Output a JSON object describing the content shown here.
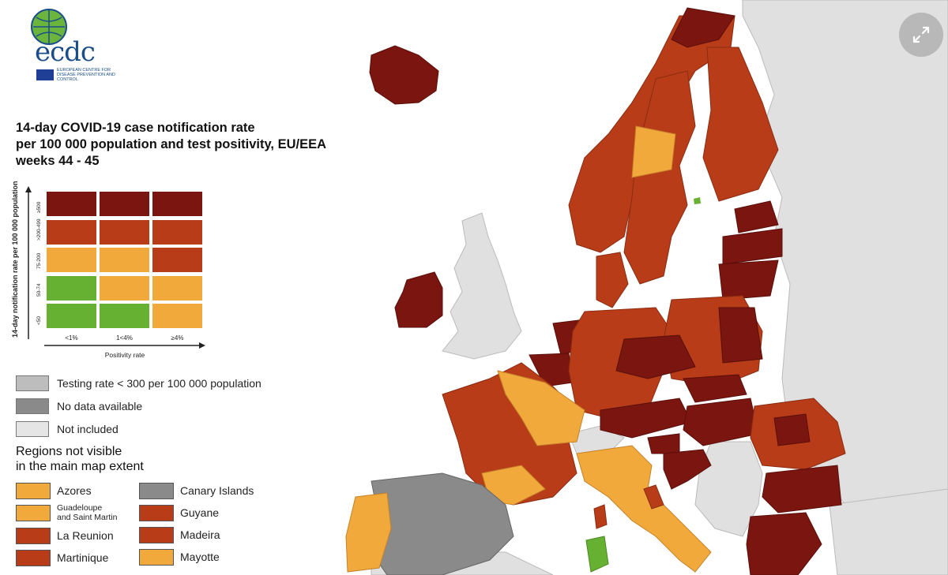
{
  "logo": {
    "name": "ecdc",
    "subtitle": "EUROPEAN CENTRE FOR DISEASE PREVENTION AND CONTROL"
  },
  "title": [
    "14-day COVID-19 case notification rate",
    "per 100 000 population and test positivity, EU/EEA",
    "weeks 44 - 45"
  ],
  "matrix": {
    "y_axis_title": "14-day notification rate per 100 000 population",
    "x_axis_title": "Positivity rate",
    "row_labels": [
      "≥500",
      ">200-499",
      "75-200",
      "50-74",
      "<50"
    ],
    "col_labels": [
      "<1%",
      "1<4%",
      "≥4%"
    ],
    "cells": [
      [
        "#7b1510",
        "#7b1510",
        "#7b1510"
      ],
      [
        "#b83c17",
        "#b83c17",
        "#b83c17"
      ],
      [
        "#f2a93b",
        "#f2a93b",
        "#b83c17"
      ],
      [
        "#66b032",
        "#f2a93b",
        "#f2a93b"
      ],
      [
        "#66b032",
        "#66b032",
        "#f2a93b"
      ]
    ]
  },
  "legend": [
    {
      "label": "Testing rate < 300 per 100 000 population",
      "color": "#bdbdbd"
    },
    {
      "label": "No data available",
      "color": "#8a8a8a"
    },
    {
      "label": "Not included",
      "color": "#e5e5e5"
    }
  ],
  "regions_title": [
    "Regions not visible",
    "in the main map extent"
  ],
  "regions": [
    {
      "label": "Azores",
      "color": "#f2a93b"
    },
    {
      "label": "Guadeloupe and Saint Martin",
      "label_lines": [
        "Guadeloupe",
        "and Saint Martin"
      ],
      "color": "#f2a93b"
    },
    {
      "label": "La Reunion",
      "color": "#b83c17"
    },
    {
      "label": "Martinique",
      "color": "#b83c17"
    },
    {
      "label": "Canary Islands",
      "color": "#8a8a8a"
    },
    {
      "label": "Guyane",
      "color": "#b83c17"
    },
    {
      "label": "Madeira",
      "color": "#b83c17"
    },
    {
      "label": "Mayotte",
      "color": "#f2a93b"
    }
  ],
  "map": {
    "colors": {
      "very_high": "#7b1510",
      "high": "#b83c17",
      "medium": "#f2a93b",
      "low": "#66b032",
      "not_included": "#e0e0e0",
      "no_data": "#8a8a8a",
      "sea": "#ffffff"
    },
    "countries": [
      {
        "name": "Iceland",
        "level": "very_high"
      },
      {
        "name": "Ireland",
        "level": "very_high"
      },
      {
        "name": "Norway",
        "level": "high"
      },
      {
        "name": "Sweden",
        "level": "high"
      },
      {
        "name": "Finland",
        "level": "high"
      },
      {
        "name": "Estonia",
        "level": "very_high"
      },
      {
        "name": "Latvia",
        "level": "very_high"
      },
      {
        "name": "Lithuania",
        "level": "very_high"
      },
      {
        "name": "Denmark",
        "level": "high"
      },
      {
        "name": "Netherlands",
        "level": "very_high"
      },
      {
        "name": "Belgium",
        "level": "very_high"
      },
      {
        "name": "Germany",
        "level": "high"
      },
      {
        "name": "Poland",
        "level": "high"
      },
      {
        "name": "Czechia",
        "level": "very_high"
      },
      {
        "name": "Austria",
        "level": "very_high"
      },
      {
        "name": "Slovakia",
        "level": "very_high"
      },
      {
        "name": "Hungary",
        "level": "very_high"
      },
      {
        "name": "Slovenia",
        "level": "very_high"
      },
      {
        "name": "Croatia",
        "level": "very_high"
      },
      {
        "name": "Romania",
        "level": "high"
      },
      {
        "name": "Bulgaria",
        "level": "very_high"
      },
      {
        "name": "Greece",
        "level": "very_high"
      },
      {
        "name": "France",
        "level": "high"
      },
      {
        "name": "Spain",
        "level": "no_data"
      },
      {
        "name": "Portugal",
        "level": "medium"
      },
      {
        "name": "Italy",
        "level": "medium"
      },
      {
        "name": "Sardinia",
        "level": "low"
      },
      {
        "name": "Switzerland",
        "level": "not_included"
      },
      {
        "name": "United Kingdom",
        "level": "not_included"
      }
    ]
  },
  "controls": {
    "expand_icon": "expand-icon"
  }
}
